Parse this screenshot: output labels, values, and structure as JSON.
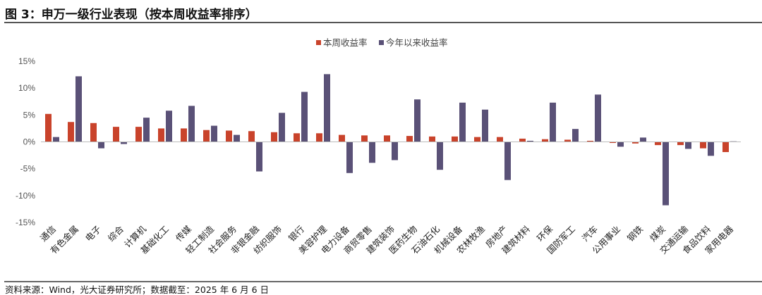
{
  "title": "图 3：申万一级行业表现（按本周收益率排序）",
  "source": "资料来源：Wind，光大证券研究所；数据截至：2025 年 6 月 6 日",
  "chart_data": {
    "type": "bar",
    "title": "",
    "xlabel": "",
    "ylabel": "",
    "ylim": [
      -15,
      15
    ],
    "yticks": [
      15,
      10,
      5,
      0,
      -5,
      -10,
      -15
    ],
    "ytick_format": "percent",
    "grid": false,
    "legend": "top-center",
    "colors": {
      "本周收益率": "#C9432B",
      "今年以来收益率": "#5A5177"
    },
    "categories": [
      "通信",
      "有色金属",
      "电子",
      "综合",
      "计算机",
      "基础化工",
      "传媒",
      "轻工制造",
      "社会服务",
      "非银金融",
      "纺织服饰",
      "银行",
      "美容护理",
      "电力设备",
      "商贸零售",
      "建筑装饰",
      "医药生物",
      "石油石化",
      "机械设备",
      "农林牧渔",
      "房地产",
      "建筑材料",
      "环保",
      "国防军工",
      "汽车",
      "公用事业",
      "钢铁",
      "煤炭",
      "交通运输",
      "食品饮料",
      "家用电器"
    ],
    "series": [
      {
        "name": "本周收益率",
        "values": [
          5.2,
          3.7,
          3.5,
          2.8,
          2.8,
          2.5,
          2.5,
          2.2,
          2.1,
          2.0,
          1.8,
          1.6,
          1.6,
          1.3,
          1.2,
          1.2,
          1.1,
          1.0,
          1.0,
          0.9,
          0.9,
          0.6,
          0.5,
          0.4,
          0.2,
          -0.2,
          -0.3,
          -0.6,
          -0.6,
          -1.2,
          -1.9
        ]
      },
      {
        "name": "今年以来收益率",
        "values": [
          0.9,
          12.2,
          -1.2,
          -0.4,
          4.5,
          5.8,
          6.7,
          3.0,
          1.3,
          -5.5,
          5.4,
          9.3,
          12.6,
          -5.8,
          -3.9,
          -3.4,
          7.9,
          -5.2,
          7.3,
          6.0,
          -7.1,
          0.2,
          7.3,
          2.4,
          8.8,
          -0.9,
          0.8,
          -11.8,
          -1.3,
          -2.6,
          0.1
        ]
      }
    ]
  }
}
